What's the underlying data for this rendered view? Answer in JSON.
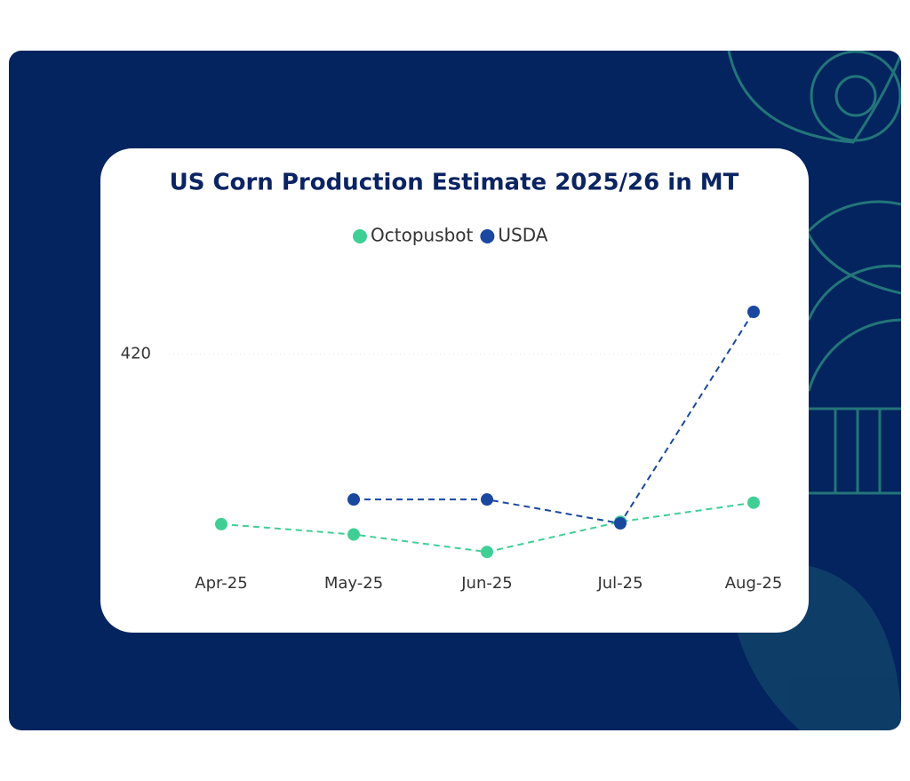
{
  "chart_data": {
    "type": "line",
    "title": "US Corn Production Estimate 2025/26 in MT",
    "categories": [
      "Apr-25",
      "May-25",
      "Jun-25",
      "Jul-25",
      "Aug-25"
    ],
    "series": [
      {
        "name": "Octopusbot",
        "color": "#3fcf95",
        "values": [
          398.6,
          397.3,
          395.1,
          398.9,
          401.3
        ]
      },
      {
        "name": "USDA",
        "color": "#1a48a0",
        "values": [
          null,
          401.7,
          401.7,
          398.7,
          425.3
        ]
      }
    ],
    "ylim": [
      393,
      431
    ],
    "yticks": [
      420
    ],
    "grid": true,
    "legend": "top",
    "dashed": true
  }
}
